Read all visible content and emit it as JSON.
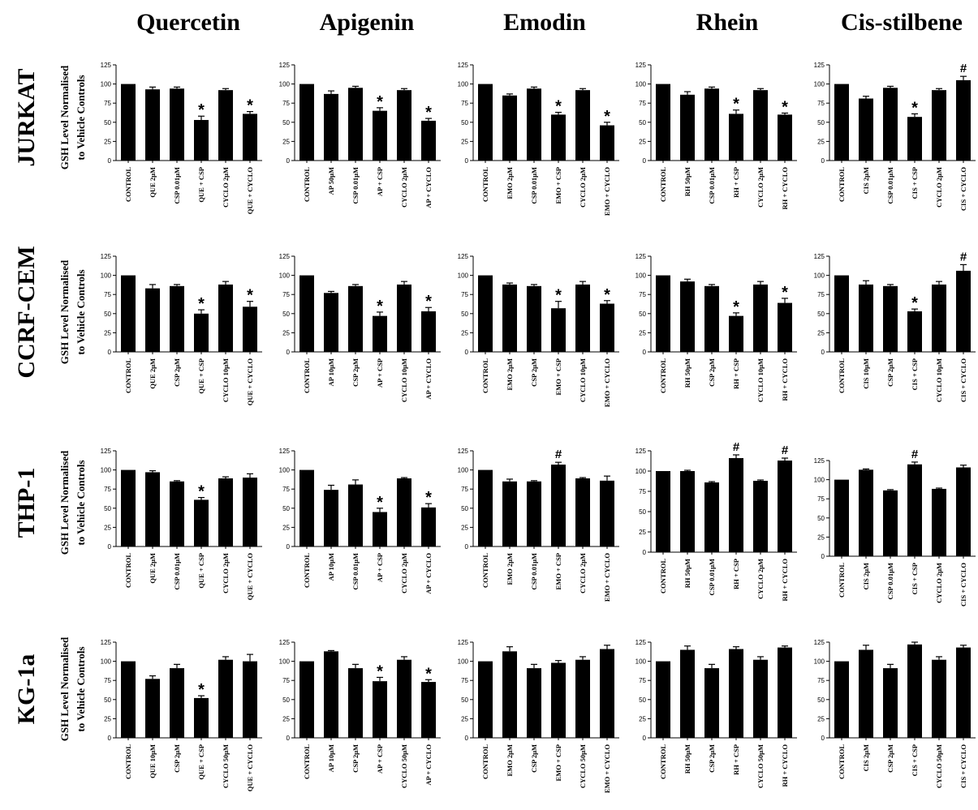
{
  "columns": [
    "Quercetin",
    "Apigenin",
    "Emodin",
    "Rhein",
    "Cis-stilbene"
  ],
  "rows": [
    "JURKAT",
    "CCRF-CEM",
    "THP-1",
    "KG-1a"
  ],
  "ylabel_line1": "GSH Level Normalised",
  "ylabel_line2": "to Vehicle Controls",
  "chart_data": [
    {
      "type": "bar",
      "row": "JURKAT",
      "column": "Quercetin",
      "categories": [
        "CONTROL",
        "QUE 2μM",
        "CSP 0.01μM",
        "QUE + CSP",
        "CYCLO 2μM",
        "QUE + CYCLO"
      ],
      "values": [
        100,
        93,
        94,
        53,
        92,
        61
      ],
      "errors": [
        0,
        3,
        2,
        5,
        2,
        3
      ],
      "annotations": [
        "",
        "",
        "",
        "*",
        "",
        "*"
      ],
      "ylim": [
        0,
        125
      ],
      "yticks": [
        0,
        25,
        50,
        75,
        100,
        125
      ]
    },
    {
      "type": "bar",
      "row": "JURKAT",
      "column": "Apigenin",
      "categories": [
        "CONTROL",
        "AP 50μM",
        "CSP 0.01μM",
        "AP + CSP",
        "CYCLO 2μM",
        "AP + CYCLO"
      ],
      "values": [
        100,
        87,
        95,
        65,
        92,
        52
      ],
      "errors": [
        0,
        4,
        2,
        4,
        2,
        3
      ],
      "annotations": [
        "",
        "",
        "",
        "*",
        "",
        "*"
      ],
      "ylim": [
        0,
        125
      ],
      "yticks": [
        0,
        25,
        50,
        75,
        100,
        125
      ]
    },
    {
      "type": "bar",
      "row": "JURKAT",
      "column": "Emodin",
      "categories": [
        "CONTROL",
        "EMO 2μM",
        "CSP 0.01μM",
        "EMO + CSP",
        "CYCLO 2μM",
        "EMO + CYCLO"
      ],
      "values": [
        100,
        85,
        94,
        60,
        92,
        46
      ],
      "errors": [
        0,
        2,
        2,
        3,
        2,
        4
      ],
      "annotations": [
        "",
        "",
        "",
        "*",
        "",
        "*"
      ],
      "ylim": [
        0,
        125
      ],
      "yticks": [
        0,
        25,
        50,
        75,
        100,
        125
      ]
    },
    {
      "type": "bar",
      "row": "JURKAT",
      "column": "Rhein",
      "categories": [
        "CONTROL",
        "RH 50μM",
        "CSP 0.01μM",
        "RH + CSP",
        "CYCLO 2μM",
        "RH + CYCLO"
      ],
      "values": [
        100,
        86,
        94,
        61,
        92,
        60
      ],
      "errors": [
        0,
        4,
        2,
        5,
        2,
        2
      ],
      "annotations": [
        "",
        "",
        "",
        "*",
        "",
        "*"
      ],
      "ylim": [
        0,
        125
      ],
      "yticks": [
        0,
        25,
        50,
        75,
        100,
        125
      ]
    },
    {
      "type": "bar",
      "row": "JURKAT",
      "column": "Cis-stilbene",
      "categories": [
        "CONTROL",
        "CIS 2μM",
        "CSP 0.01μM",
        "CIS + CSP",
        "CYCLO 2μM",
        "CIS + CYCLO"
      ],
      "values": [
        100,
        81,
        95,
        57,
        92,
        105
      ],
      "errors": [
        0,
        3,
        2,
        4,
        2,
        5
      ],
      "annotations": [
        "",
        "",
        "",
        "*",
        "",
        "#"
      ],
      "ylim": [
        0,
        125
      ],
      "yticks": [
        0,
        25,
        50,
        75,
        100,
        125
      ]
    },
    {
      "type": "bar",
      "row": "CCRF-CEM",
      "column": "Quercetin",
      "categories": [
        "CONTROL",
        "QUE 2μM",
        "CSP 2μM",
        "QUE + CSP",
        "CYCLO 10μM",
        "QUE + CYCLO"
      ],
      "values": [
        100,
        83,
        86,
        50,
        88,
        59
      ],
      "errors": [
        0,
        5,
        2,
        5,
        4,
        7
      ],
      "annotations": [
        "",
        "",
        "",
        "*",
        "",
        "*"
      ],
      "ylim": [
        0,
        125
      ],
      "yticks": [
        0,
        25,
        50,
        75,
        100,
        125
      ]
    },
    {
      "type": "bar",
      "row": "CCRF-CEM",
      "column": "Apigenin",
      "categories": [
        "CONTROL",
        "AP 10μM",
        "CSP 2μM",
        "AP + CSP",
        "CYCLO 10μM",
        "AP + CYCLO"
      ],
      "values": [
        100,
        77,
        86,
        47,
        88,
        53
      ],
      "errors": [
        0,
        2,
        2,
        5,
        4,
        5
      ],
      "annotations": [
        "",
        "",
        "",
        "*",
        "",
        "*"
      ],
      "ylim": [
        0,
        125
      ],
      "yticks": [
        0,
        25,
        50,
        75,
        100,
        125
      ]
    },
    {
      "type": "bar",
      "row": "CCRF-CEM",
      "column": "Emodin",
      "categories": [
        "CONTROL",
        "EMO 2μM",
        "CSP 2μM",
        "EMO + CSP",
        "CYCLO 10μM",
        "EMO + CYCLO"
      ],
      "values": [
        100,
        88,
        86,
        57,
        88,
        63
      ],
      "errors": [
        0,
        2,
        2,
        9,
        4,
        4
      ],
      "annotations": [
        "",
        "",
        "",
        "*",
        "",
        "*"
      ],
      "ylim": [
        0,
        125
      ],
      "yticks": [
        0,
        25,
        50,
        75,
        100,
        125
      ]
    },
    {
      "type": "bar",
      "row": "CCRF-CEM",
      "column": "Rhein",
      "categories": [
        "CONTROL",
        "RH 50μM",
        "CSP 2μM",
        "RH + CSP",
        "CYCLO 10μM",
        "RH + CYCLO"
      ],
      "values": [
        100,
        92,
        86,
        47,
        88,
        64
      ],
      "errors": [
        0,
        3,
        2,
        4,
        4,
        6
      ],
      "annotations": [
        "",
        "",
        "",
        "*",
        "",
        "*"
      ],
      "ylim": [
        0,
        125
      ],
      "yticks": [
        0,
        25,
        50,
        75,
        100,
        125
      ]
    },
    {
      "type": "bar",
      "row": "CCRF-CEM",
      "column": "Cis-stilbene",
      "categories": [
        "CONTROL",
        "CIS 10μM",
        "CSP 2μM",
        "CIS + CSP",
        "CYCLO 10μM",
        "CIS + CYCLO"
      ],
      "values": [
        100,
        88,
        86,
        53,
        88,
        106
      ],
      "errors": [
        0,
        5,
        2,
        3,
        4,
        8
      ],
      "annotations": [
        "",
        "",
        "",
        "*",
        "",
        "#"
      ],
      "ylim": [
        0,
        125
      ],
      "yticks": [
        0,
        25,
        50,
        75,
        100,
        125
      ]
    },
    {
      "type": "bar",
      "row": "THP-1",
      "column": "Quercetin",
      "categories": [
        "CONTROL",
        "QUE 2μM",
        "CSP 0.01μM",
        "QUE + CSP",
        "CYCLO 2μM",
        "QUE + CYCLO"
      ],
      "values": [
        100,
        97,
        85,
        61,
        89,
        90
      ],
      "errors": [
        0,
        2,
        1,
        3,
        2,
        5
      ],
      "annotations": [
        "",
        "",
        "",
        "*",
        "",
        ""
      ],
      "ylim": [
        0,
        125
      ],
      "yticks": [
        0,
        25,
        50,
        75,
        100,
        125
      ]
    },
    {
      "type": "bar",
      "row": "THP-1",
      "column": "Apigenin",
      "categories": [
        "CONTROL",
        "AP 10μM",
        "CSP 0.01μM",
        "AP + CSP",
        "CYCLO 2μM",
        "AP + CYCLO"
      ],
      "values": [
        100,
        74,
        81,
        45,
        89,
        51
      ],
      "errors": [
        0,
        6,
        6,
        5,
        1,
        5
      ],
      "annotations": [
        "",
        "",
        "",
        "*",
        "",
        "*"
      ],
      "ylim": [
        0,
        125
      ],
      "yticks": [
        0,
        25,
        50,
        75,
        100,
        125
      ]
    },
    {
      "type": "bar",
      "row": "THP-1",
      "column": "Emodin",
      "categories": [
        "CONTROL",
        "EMO 2μM",
        "CSP 0.01μM",
        "EMO + CSP",
        "CYCLO 2μM",
        "EMO + CYCLO"
      ],
      "values": [
        100,
        85,
        85,
        107,
        89,
        86
      ],
      "errors": [
        0,
        3,
        1,
        3,
        1,
        6
      ],
      "annotations": [
        "",
        "",
        "",
        "#",
        "",
        ""
      ],
      "ylim": [
        0,
        125
      ],
      "yticks": [
        0,
        25,
        50,
        75,
        100,
        125
      ]
    },
    {
      "type": "bar",
      "row": "THP-1",
      "column": "Rhein",
      "categories": [
        "CONTROL",
        "RH 50μM",
        "CSP 0.01μM",
        "RH + CSP",
        "CYCLO 2μM",
        "RH + CYCLO"
      ],
      "values": [
        100,
        100,
        86,
        116,
        88,
        113
      ],
      "errors": [
        0,
        1,
        1,
        4,
        1,
        3
      ],
      "annotations": [
        "",
        "",
        "",
        "#",
        "",
        "#"
      ],
      "ylim": [
        0,
        125
      ],
      "yticks": [
        0,
        25,
        50,
        75,
        100,
        125
      ]
    },
    {
      "type": "bar",
      "row": "THP-1",
      "column": "Cis-stilbene",
      "categories": [
        "CONTROL",
        "CIS 2μM",
        "CSP 0.01μM",
        "CIS + CSP",
        "CYCLO 2μM",
        "CIS + CYCLO"
      ],
      "values": [
        100,
        113,
        86,
        120,
        88,
        116
      ],
      "errors": [
        0,
        1,
        1,
        3,
        1,
        3
      ],
      "annotations": [
        "",
        "",
        "",
        "#",
        "",
        ""
      ],
      "ylim": [
        0,
        125
      ],
      "yticks": [
        0,
        25,
        50,
        75,
        100,
        125
      ]
    },
    {
      "type": "bar",
      "row": "KG-1a",
      "column": "Quercetin",
      "categories": [
        "CONTROL",
        "QUE 10μM",
        "CSP 2μM",
        "QUE + CSP",
        "CYCLO 50μM",
        "QUE + CYCLO"
      ],
      "values": [
        100,
        77,
        91,
        52,
        102,
        100
      ],
      "errors": [
        0,
        4,
        5,
        3,
        4,
        9
      ],
      "annotations": [
        "",
        "",
        "",
        "*",
        "",
        ""
      ],
      "ylim": [
        0,
        125
      ],
      "yticks": [
        0,
        25,
        50,
        75,
        100,
        125
      ]
    },
    {
      "type": "bar",
      "row": "KG-1a",
      "column": "Apigenin",
      "categories": [
        "CONTROL",
        "AP 10μM",
        "CSP 2μM",
        "AP + CSP",
        "CYCLO 50μM",
        "AP + CYCLO"
      ],
      "values": [
        100,
        113,
        91,
        74,
        102,
        73
      ],
      "errors": [
        0,
        1,
        5,
        5,
        4,
        3
      ],
      "annotations": [
        "",
        "",
        "",
        "*",
        "",
        "*"
      ],
      "ylim": [
        0,
        125
      ],
      "yticks": [
        0,
        25,
        50,
        75,
        100,
        125
      ]
    },
    {
      "type": "bar",
      "row": "KG-1a",
      "column": "Emodin",
      "categories": [
        "CONTROL",
        "EMO 2μM",
        "CSP 2μM",
        "EMO + CSP",
        "CYCLO 50μM",
        "EMO + CYCLO"
      ],
      "values": [
        100,
        113,
        91,
        98,
        102,
        116
      ],
      "errors": [
        0,
        6,
        5,
        3,
        4,
        5
      ],
      "annotations": [
        "",
        "",
        "",
        "",
        "",
        ""
      ],
      "ylim": [
        0,
        125
      ],
      "yticks": [
        0,
        25,
        50,
        75,
        100,
        125
      ]
    },
    {
      "type": "bar",
      "row": "KG-1a",
      "column": "Rhein",
      "categories": [
        "CONTROL",
        "RH 50μM",
        "CSP 2μM",
        "RH + CSP",
        "CYCLO 50μM",
        "RH + CYCLO"
      ],
      "values": [
        100,
        115,
        91,
        116,
        102,
        118
      ],
      "errors": [
        0,
        5,
        5,
        3,
        4,
        2
      ],
      "annotations": [
        "",
        "",
        "",
        "",
        "",
        ""
      ],
      "ylim": [
        0,
        125
      ],
      "yticks": [
        0,
        25,
        50,
        75,
        100,
        125
      ]
    },
    {
      "type": "bar",
      "row": "KG-1a",
      "column": "Cis-stilbene",
      "categories": [
        "CONTROL",
        "CIS 2μM",
        "CSP 2μM",
        "CIS + CSP",
        "CYCLO 50μM",
        "CIS + CYCLO"
      ],
      "values": [
        100,
        115,
        91,
        122,
        102,
        118
      ],
      "errors": [
        0,
        6,
        5,
        3,
        4,
        3
      ],
      "annotations": [
        "",
        "",
        "",
        "",
        "",
        ""
      ],
      "ylim": [
        0,
        125
      ],
      "yticks": [
        0,
        25,
        50,
        75,
        100,
        125
      ]
    }
  ]
}
